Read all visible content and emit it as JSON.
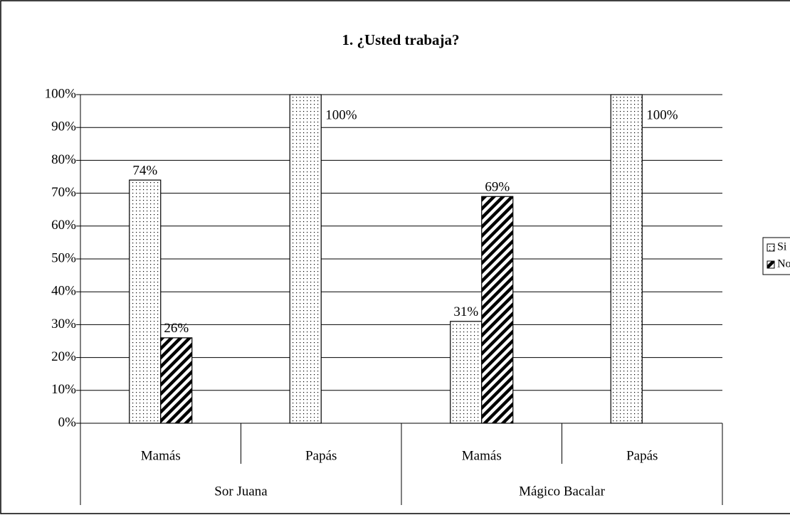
{
  "chart_data": {
    "type": "bar",
    "title": "1. ¿Usted trabaja?",
    "categories": [
      "Mamás",
      "Papás",
      "Mamás",
      "Papás"
    ],
    "groups": [
      "Sor Juana",
      "Mágico Bacalar"
    ],
    "series": [
      {
        "name": "Si %",
        "color": "#000000",
        "values": [
          74,
          100,
          31,
          100
        ],
        "value_labels": [
          "74%",
          "100%",
          "31%",
          "100%"
        ]
      },
      {
        "name": "No %",
        "color": "#000000",
        "values": [
          26,
          null,
          69,
          null
        ],
        "value_labels": [
          "26%",
          null,
          "69%",
          null
        ]
      }
    ],
    "ylim": [
      0,
      100
    ],
    "yticks": [
      {
        "value": 0,
        "label": "0%"
      },
      {
        "value": 10,
        "label": "10%"
      },
      {
        "value": 20,
        "label": "20%"
      },
      {
        "value": 30,
        "label": "30%"
      },
      {
        "value": 40,
        "label": "40%"
      },
      {
        "value": 50,
        "label": "50%"
      },
      {
        "value": 60,
        "label": "60%"
      },
      {
        "value": 70,
        "label": "70%"
      },
      {
        "value": 80,
        "label": "80%"
      },
      {
        "value": 90,
        "label": "90%"
      },
      {
        "value": 100,
        "label": "100%"
      }
    ],
    "grid": true,
    "legend": "right"
  }
}
